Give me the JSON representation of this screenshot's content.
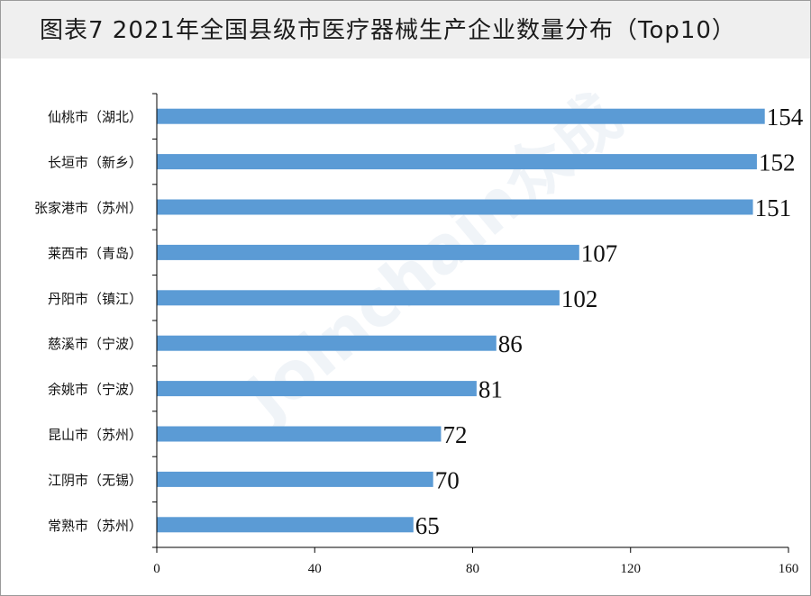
{
  "title": "图表7  2021年全国县级市医疗器械生产企业数量分布（Top10）",
  "watermark": "Joinchain众成",
  "colors": {
    "bar": "#5b9bd5",
    "title_bg": "#efefef",
    "axis": "#000000"
  },
  "chart_data": {
    "type": "bar",
    "orientation": "horizontal",
    "title": "图表7  2021年全国县级市医疗器械生产企业数量分布（Top10）",
    "categories": [
      "仙桃市（湖北）",
      "长垣市（新乡）",
      "张家港市（苏州）",
      "莱西市（青岛）",
      "丹阳市（镇江）",
      "慈溪市（宁波）",
      "余姚市（宁波）",
      "昆山市（苏州）",
      "江阴市（无锡）",
      "常熟市（苏州）"
    ],
    "values": [
      154,
      152,
      151,
      107,
      102,
      86,
      81,
      72,
      70,
      65
    ],
    "xlim": [
      0,
      160
    ],
    "xticks": [
      0,
      40,
      80,
      120,
      160
    ],
    "xlabel": "",
    "ylabel": "",
    "grid": false,
    "legend": "none"
  }
}
